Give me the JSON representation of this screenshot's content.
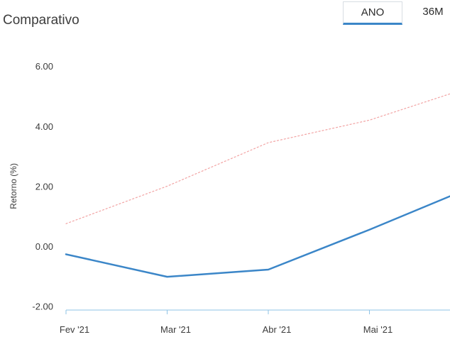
{
  "header": {
    "title": "Comparativo",
    "tabs": [
      {
        "label": "ANO",
        "active": true
      },
      {
        "label": "36M",
        "active": false
      }
    ]
  },
  "colors": {
    "series_main": "#3b86c8",
    "series_benchmark": "#f2a3a3",
    "axis": "#8fc3e6",
    "text": "#3b3b3b"
  },
  "chart_data": {
    "type": "line",
    "title": "Comparativo",
    "ylabel": "Retorno (%)",
    "xlabel": "",
    "ylim": [
      -2,
      6
    ],
    "yticks": [
      -2,
      0,
      2,
      4,
      6
    ],
    "ytick_labels": [
      "-2.00",
      "0.00",
      "2.00",
      "4.00",
      "6.00"
    ],
    "categories": [
      "Fev '21",
      "Mar '21",
      "Abr '21",
      "Mai '21",
      ""
    ],
    "series": [
      {
        "values": [
          -0.27,
          -1.02,
          -0.78,
          0.55,
          1.95
        ]
      },
      {
        "values": [
          0.75,
          2.0,
          3.45,
          4.2,
          5.3
        ]
      }
    ],
    "grid": false,
    "legend": "none"
  }
}
